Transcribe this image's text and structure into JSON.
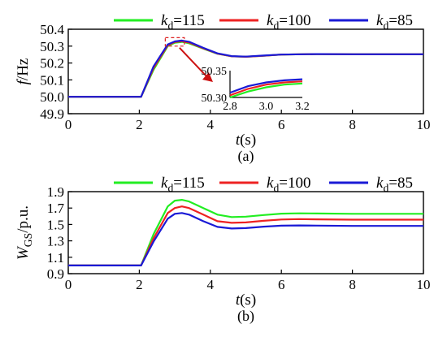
{
  "chart_data": [
    {
      "type": "line",
      "panel_label": "(a)",
      "xlabel": "t(s)",
      "ylabel": "f/Hz",
      "xlim": [
        0,
        10
      ],
      "ylim": [
        49.9,
        50.4
      ],
      "xticks": [
        "0",
        "2",
        "4",
        "6",
        "8",
        "10"
      ],
      "yticks": [
        "49.9",
        "50.0",
        "50.1",
        "50.2",
        "50.3",
        "50.4"
      ],
      "legend": "top-right",
      "series": [
        {
          "name": "k_d=115",
          "color": "#22ee22",
          "x": [
            0,
            2.05,
            2.4,
            2.8,
            3.0,
            3.2,
            3.4,
            3.8,
            4.2,
            4.6,
            5.0,
            5.5,
            6.0,
            7.0,
            8.0,
            10.0
          ],
          "y": [
            50.0,
            50.0,
            50.16,
            50.3,
            50.32,
            50.325,
            50.317,
            50.285,
            50.255,
            50.24,
            50.237,
            50.243,
            50.25,
            50.253,
            50.252,
            50.252
          ]
        },
        {
          "name": "k_d=100",
          "color": "#ee2222",
          "x": [
            0,
            2.05,
            2.4,
            2.8,
            3.0,
            3.2,
            3.4,
            3.8,
            4.2,
            4.6,
            5.0,
            5.5,
            6.0,
            7.0,
            8.0,
            10.0
          ],
          "y": [
            50.0,
            50.0,
            50.17,
            50.305,
            50.324,
            50.329,
            50.321,
            50.287,
            50.256,
            50.24,
            50.237,
            50.243,
            50.25,
            50.253,
            50.252,
            50.252
          ]
        },
        {
          "name": "k_d=85",
          "color": "#1a1ad6",
          "x": [
            0,
            2.05,
            2.4,
            2.8,
            3.0,
            3.2,
            3.4,
            3.8,
            4.2,
            4.6,
            5.0,
            5.5,
            6.0,
            7.0,
            8.0,
            10.0
          ],
          "y": [
            50.0,
            50.0,
            50.18,
            50.31,
            50.328,
            50.333,
            50.326,
            50.29,
            50.257,
            50.241,
            50.238,
            50.244,
            50.25,
            50.253,
            50.252,
            50.252
          ]
        }
      ],
      "inset": {
        "xlim": [
          2.8,
          3.2
        ],
        "ylim": [
          50.3,
          50.35
        ],
        "xticks": [
          "2.8",
          "3.0",
          "3.2"
        ],
        "yticks": [
          "50.30",
          "50.35"
        ],
        "series": [
          {
            "name": "k_d=115",
            "color": "#22ee22",
            "x": [
              2.8,
              2.9,
              3.0,
              3.1,
              3.2
            ],
            "y": [
              50.3,
              50.311,
              50.319,
              50.324,
              50.326
            ]
          },
          {
            "name": "k_d=100",
            "color": "#ee2222",
            "x": [
              2.8,
              2.9,
              3.0,
              3.1,
              3.2
            ],
            "y": [
              50.304,
              50.316,
              50.324,
              50.328,
              50.33
            ]
          },
          {
            "name": "k_d=85",
            "color": "#1a1ad6",
            "x": [
              2.8,
              2.9,
              3.0,
              3.1,
              3.2
            ],
            "y": [
              50.309,
              50.321,
              50.328,
              50.332,
              50.334
            ]
          }
        ]
      }
    },
    {
      "type": "line",
      "panel_label": "(b)",
      "xlabel": "t(s)",
      "ylabel": "W_GS/p.u.",
      "xlim": [
        0,
        10
      ],
      "ylim": [
        0.9,
        1.9
      ],
      "xticks": [
        "0",
        "2",
        "4",
        "6",
        "8",
        "10"
      ],
      "yticks": [
        "0.9",
        "1.1",
        "1.3",
        "1.5",
        "1.7",
        "1.9"
      ],
      "legend": "top",
      "series": [
        {
          "name": "k_d=115",
          "color": "#22ee22",
          "x": [
            0,
            2.05,
            2.4,
            2.8,
            3.0,
            3.2,
            3.4,
            3.8,
            4.2,
            4.6,
            5.0,
            5.5,
            6.0,
            6.5,
            7.0,
            8.0,
            10.0
          ],
          "y": [
            1.0,
            1.0,
            1.38,
            1.72,
            1.79,
            1.8,
            1.78,
            1.7,
            1.62,
            1.59,
            1.595,
            1.615,
            1.632,
            1.636,
            1.634,
            1.63,
            1.63
          ]
        },
        {
          "name": "k_d=100",
          "color": "#ee2222",
          "x": [
            0,
            2.05,
            2.4,
            2.8,
            3.0,
            3.2,
            3.4,
            3.8,
            4.2,
            4.6,
            5.0,
            5.5,
            6.0,
            6.5,
            7.0,
            8.0,
            10.0
          ],
          "y": [
            1.0,
            1.0,
            1.33,
            1.64,
            1.7,
            1.72,
            1.7,
            1.62,
            1.54,
            1.52,
            1.525,
            1.545,
            1.56,
            1.565,
            1.562,
            1.558,
            1.558
          ]
        },
        {
          "name": "k_d=85",
          "color": "#1a1ad6",
          "x": [
            0,
            2.05,
            2.4,
            2.8,
            3.0,
            3.2,
            3.4,
            3.8,
            4.2,
            4.6,
            5.0,
            5.5,
            6.0,
            6.5,
            7.0,
            8.0,
            10.0
          ],
          "y": [
            1.0,
            1.0,
            1.29,
            1.57,
            1.63,
            1.64,
            1.62,
            1.54,
            1.47,
            1.45,
            1.455,
            1.473,
            1.485,
            1.488,
            1.486,
            1.482,
            1.482
          ]
        }
      ]
    }
  ]
}
